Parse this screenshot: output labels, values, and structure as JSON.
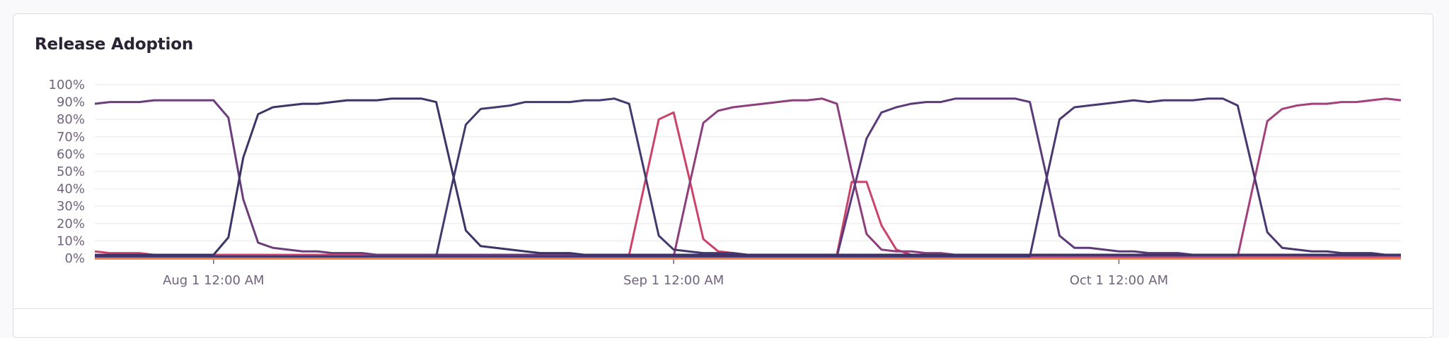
{
  "card": {
    "title": "Release Adoption"
  },
  "chart_data": {
    "type": "line",
    "title": "Release Adoption",
    "xlabel": "",
    "ylabel": "",
    "x_range": [
      "Jul 24",
      "Oct 20"
    ],
    "x_interval": "1 day",
    "ylim": [
      0,
      100
    ],
    "y_unit": "%",
    "y_ticks": [
      "0%",
      "10%",
      "20%",
      "30%",
      "40%",
      "50%",
      "60%",
      "70%",
      "80%",
      "90%",
      "100%"
    ],
    "x_ticks": [
      {
        "label": "Aug 1 12:00 AM",
        "date": "Aug 1"
      },
      {
        "label": "Sep 1 12:00 AM",
        "date": "Sep 1"
      },
      {
        "label": "Oct 1 12:00 AM",
        "date": "Oct 1"
      }
    ],
    "grid": true,
    "legend": "none",
    "series": [
      {
        "color": "#f47f3c",
        "values": [
          0,
          0,
          0,
          0,
          0,
          0,
          0,
          0,
          0,
          0,
          0,
          0,
          0,
          0,
          0,
          0,
          0,
          0,
          0,
          0,
          0,
          0,
          0,
          0,
          0,
          0,
          0,
          0,
          0,
          0,
          0,
          0,
          0,
          0,
          0,
          0,
          0,
          0,
          0,
          0,
          0,
          0,
          0,
          0,
          0,
          0,
          0,
          0,
          0,
          0,
          0,
          0,
          0,
          0,
          0,
          0,
          0,
          0,
          0,
          0,
          0,
          0,
          0,
          0,
          0,
          0,
          0,
          0,
          0,
          0,
          0,
          0,
          0,
          0,
          0,
          0,
          0,
          0,
          0,
          0,
          0,
          0,
          0,
          0,
          0,
          0,
          0,
          0,
          0
        ]
      },
      {
        "color": "#cc4369",
        "values": [
          4,
          3,
          3,
          3,
          2,
          2,
          2,
          2,
          2,
          2,
          2,
          2,
          2,
          2,
          2,
          2,
          2,
          2,
          2,
          2,
          2,
          2,
          2,
          2,
          2,
          2,
          2,
          2,
          2,
          2,
          2,
          2,
          2,
          2,
          2,
          2,
          2,
          41,
          80,
          84,
          48,
          11,
          4,
          3,
          2,
          2,
          2,
          2,
          2,
          2,
          2,
          44,
          44,
          19,
          5,
          2,
          1,
          1,
          1,
          1,
          1,
          1,
          1,
          1,
          1,
          1,
          1,
          1,
          1,
          1,
          1,
          1,
          1,
          1,
          1,
          1,
          1,
          1,
          1,
          1,
          1,
          1,
          1,
          1,
          1,
          1,
          1,
          1,
          1
        ]
      },
      {
        "color": "#a3417c",
        "values": [
          1,
          1,
          1,
          1,
          1,
          1,
          1,
          1,
          1,
          1,
          1,
          1,
          1,
          1,
          1,
          1,
          1,
          1,
          1,
          1,
          1,
          1,
          1,
          1,
          1,
          1,
          1,
          1,
          1,
          1,
          1,
          1,
          1,
          1,
          1,
          1,
          1,
          1,
          1,
          1,
          1,
          1,
          1,
          1,
          1,
          1,
          1,
          1,
          1,
          1,
          1,
          1,
          1,
          1,
          1,
          1,
          1,
          1,
          1,
          1,
          1,
          1,
          1,
          1,
          1,
          1,
          1,
          1,
          1,
          1,
          1,
          1,
          1,
          1,
          1,
          1,
          1,
          1,
          40,
          79,
          86,
          88,
          89,
          89,
          90,
          90,
          91,
          92,
          91
        ]
      },
      {
        "color": "#8c3f7c",
        "values": [
          1,
          1,
          1,
          1,
          1,
          1,
          1,
          1,
          1,
          1,
          1,
          1,
          1,
          1,
          1,
          1,
          1,
          1,
          1,
          1,
          1,
          1,
          1,
          1,
          1,
          1,
          1,
          1,
          1,
          1,
          1,
          1,
          1,
          1,
          1,
          1,
          1,
          1,
          1,
          1,
          40,
          78,
          85,
          87,
          88,
          89,
          90,
          91,
          91,
          92,
          89,
          50,
          14,
          5,
          4,
          4,
          3,
          3,
          2,
          2,
          2,
          2,
          2,
          2,
          2,
          2,
          2,
          2,
          2,
          2,
          2,
          2,
          2,
          2,
          2,
          2,
          2,
          2,
          2,
          2,
          2,
          2,
          2,
          2,
          2,
          2,
          2,
          2,
          2
        ]
      },
      {
        "color": "#6b3d7b",
        "values": [
          89,
          90,
          90,
          90,
          91,
          91,
          91,
          91,
          91,
          81,
          34,
          9,
          6,
          5,
          4,
          4,
          3,
          3,
          3,
          2,
          2,
          2,
          2,
          2,
          2,
          2,
          2,
          2,
          2,
          2,
          2,
          2,
          2,
          2,
          2,
          2,
          2,
          2,
          2,
          2,
          2,
          2,
          2,
          2,
          2,
          2,
          2,
          2,
          2,
          2,
          2,
          2,
          2,
          2,
          2,
          2,
          2,
          2,
          2,
          2,
          2,
          2,
          2,
          2,
          2,
          2,
          2,
          2,
          2,
          2,
          2,
          2,
          2,
          2,
          2,
          2,
          2,
          2,
          2,
          2,
          2,
          2,
          2,
          2,
          2,
          2,
          2,
          2,
          2
        ]
      },
      {
        "color": "#5c3a79",
        "values": [
          1,
          1,
          1,
          1,
          1,
          1,
          1,
          1,
          1,
          1,
          1,
          1,
          1,
          1,
          1,
          1,
          1,
          1,
          1,
          1,
          1,
          1,
          1,
          1,
          1,
          1,
          1,
          1,
          1,
          1,
          1,
          1,
          1,
          1,
          1,
          1,
          1,
          1,
          1,
          1,
          1,
          1,
          1,
          1,
          1,
          1,
          1,
          1,
          1,
          1,
          1,
          35,
          69,
          84,
          87,
          89,
          90,
          90,
          92,
          92,
          92,
          92,
          92,
          90,
          52,
          13,
          6,
          6,
          5,
          4,
          4,
          3,
          3,
          3,
          2,
          2,
          2,
          2,
          2,
          2,
          2,
          2,
          2,
          2,
          2,
          2,
          2,
          2,
          2
        ]
      },
      {
        "color": "#4a3772",
        "values": [
          1,
          1,
          1,
          1,
          1,
          1,
          1,
          1,
          1,
          1,
          1,
          1,
          1,
          1,
          1,
          1,
          1,
          1,
          1,
          1,
          1,
          1,
          1,
          1,
          1,
          1,
          1,
          1,
          1,
          1,
          1,
          1,
          1,
          1,
          1,
          1,
          1,
          1,
          1,
          1,
          1,
          1,
          1,
          1,
          1,
          1,
          1,
          1,
          1,
          1,
          1,
          1,
          1,
          1,
          1,
          1,
          1,
          1,
          1,
          1,
          1,
          1,
          1,
          1,
          41,
          80,
          87,
          88,
          89,
          90,
          91,
          90,
          91,
          91,
          91,
          92,
          92,
          88,
          52,
          15,
          6,
          5,
          4,
          4,
          3,
          3,
          3,
          2,
          2
        ]
      },
      {
        "color": "#443a70",
        "values": [
          1,
          1,
          1,
          1,
          1,
          1,
          1,
          1,
          1,
          1,
          1,
          1,
          1,
          1,
          1,
          1,
          1,
          1,
          1,
          1,
          1,
          1,
          1,
          1,
          40,
          77,
          86,
          87,
          88,
          90,
          90,
          90,
          90,
          91,
          91,
          92,
          89,
          51,
          13,
          5,
          4,
          3,
          3,
          3,
          2,
          2,
          2,
          2,
          2,
          2,
          2,
          2,
          2,
          2,
          2,
          2,
          2,
          2,
          2,
          2,
          2,
          2,
          2,
          2,
          2,
          2,
          2,
          2,
          2,
          2,
          2,
          2,
          2,
          2,
          2,
          2,
          2,
          2,
          2,
          2,
          2,
          2,
          2,
          2,
          2,
          2,
          2,
          2,
          2
        ]
      },
      {
        "color": "#3b3466",
        "values": [
          2,
          2,
          2,
          2,
          2,
          2,
          2,
          2,
          2,
          12,
          58,
          83,
          87,
          88,
          89,
          89,
          90,
          91,
          91,
          91,
          92,
          92,
          92,
          90,
          53,
          16,
          7,
          6,
          5,
          4,
          3,
          3,
          3,
          2,
          2,
          2,
          2,
          2,
          2,
          2,
          2,
          2,
          2,
          2,
          2,
          2,
          2,
          2,
          2,
          2,
          2,
          2,
          2,
          2,
          2,
          2,
          2,
          2,
          2,
          2,
          2,
          2,
          2,
          2,
          2,
          2,
          2,
          2,
          2,
          2,
          2,
          2,
          2,
          2,
          2,
          2,
          2,
          2,
          2,
          2,
          2,
          2,
          2,
          2,
          2,
          2,
          2,
          2,
          2
        ]
      }
    ]
  }
}
